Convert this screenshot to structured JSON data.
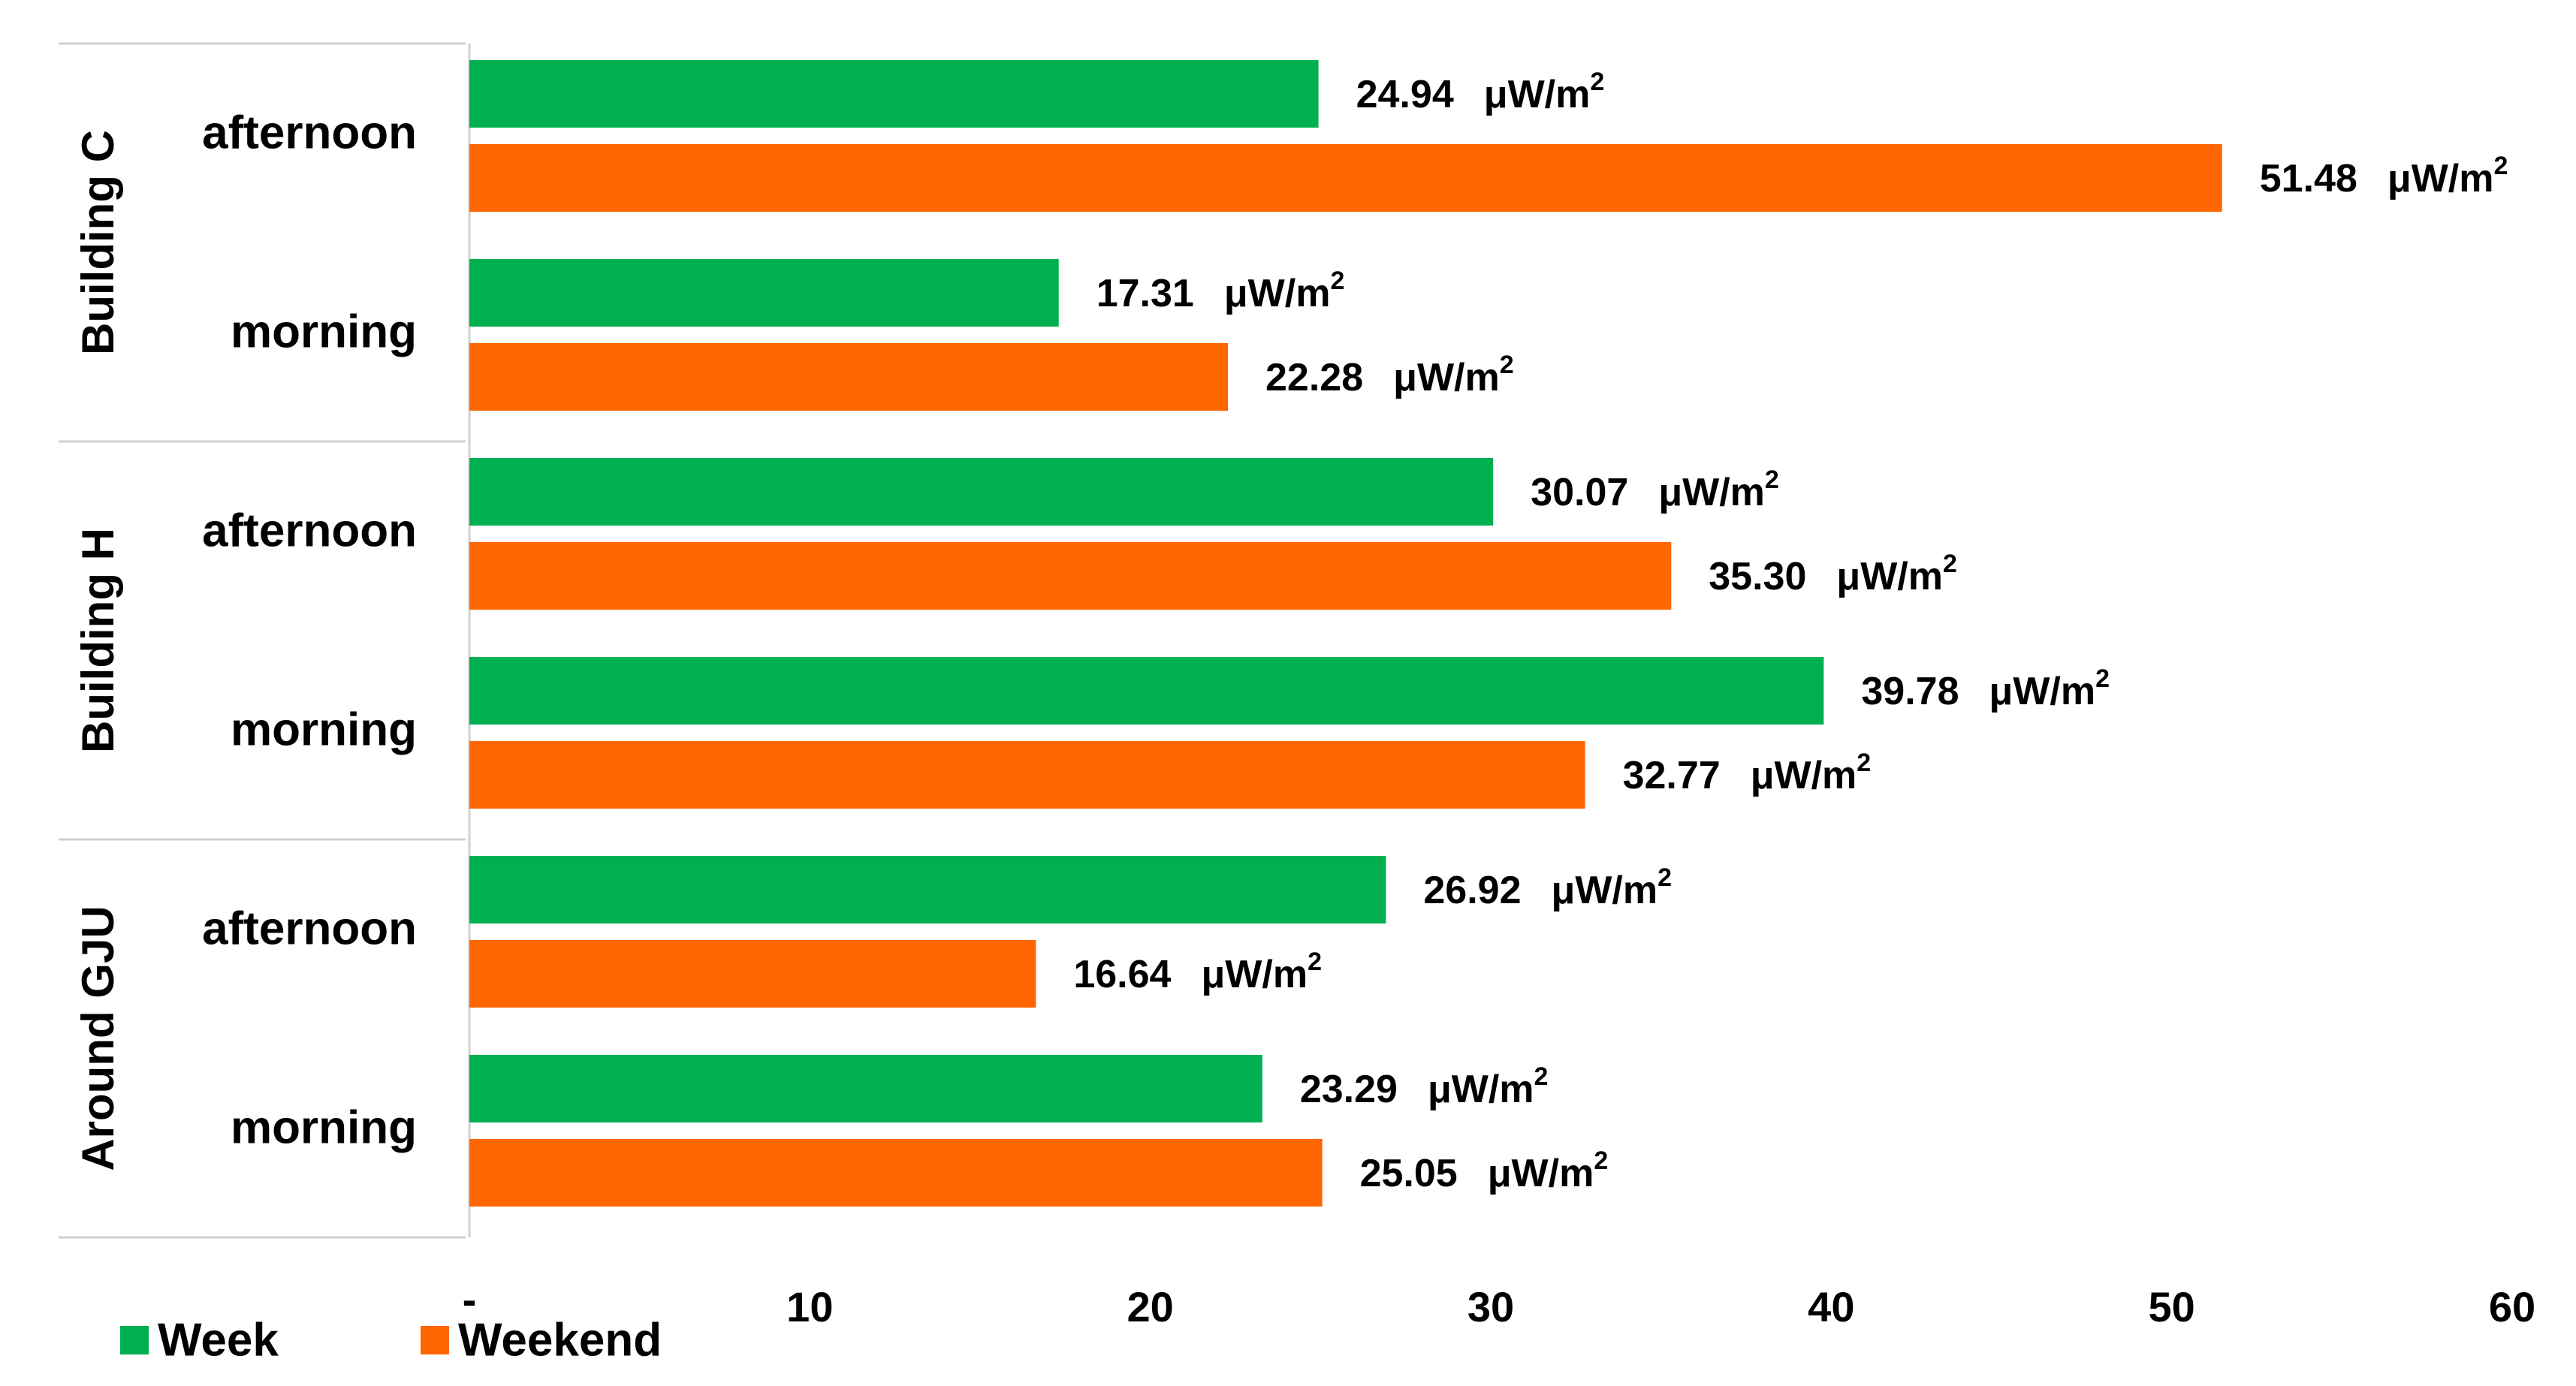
{
  "chart_data": {
    "type": "bar",
    "orientation": "horizontal",
    "unit": "μW/m",
    "unit_superscript": "2",
    "groups": [
      {
        "name": "Building C",
        "periods": [
          {
            "name": "afternoon",
            "week": 24.94,
            "weekend": 51.48,
            "week_label": "24.94",
            "weekend_label": "51.48"
          },
          {
            "name": "morning",
            "week": 17.31,
            "weekend": 22.28,
            "week_label": "17.31",
            "weekend_label": "22.28"
          }
        ]
      },
      {
        "name": "Building H",
        "periods": [
          {
            "name": "afternoon",
            "week": 30.07,
            "weekend": 35.3,
            "week_label": "30.07",
            "weekend_label": "35.30"
          },
          {
            "name": "morning",
            "week": 39.78,
            "weekend": 32.77,
            "week_label": "39.78",
            "weekend_label": "32.77"
          }
        ]
      },
      {
        "name": "Around GJU",
        "periods": [
          {
            "name": "afternoon",
            "week": 26.92,
            "weekend": 16.64,
            "week_label": "26.92",
            "weekend_label": "16.64"
          },
          {
            "name": "morning",
            "week": 23.29,
            "weekend": 25.05,
            "week_label": "23.29",
            "weekend_label": "25.05"
          }
        ]
      }
    ],
    "series": [
      {
        "key": "week",
        "name": "Week",
        "color": "#00b050"
      },
      {
        "key": "weekend",
        "name": "Weekend",
        "color": "#ff6600"
      }
    ],
    "xlim": [
      0,
      60
    ],
    "xticks": [
      "-",
      "10",
      "20",
      "30",
      "40",
      "50",
      "60"
    ],
    "xtick_values": [
      0,
      10,
      20,
      30,
      40,
      50,
      60
    ],
    "grid": false,
    "legend": "bottom-left",
    "title": "",
    "xlabel": "",
    "ylabel": ""
  }
}
